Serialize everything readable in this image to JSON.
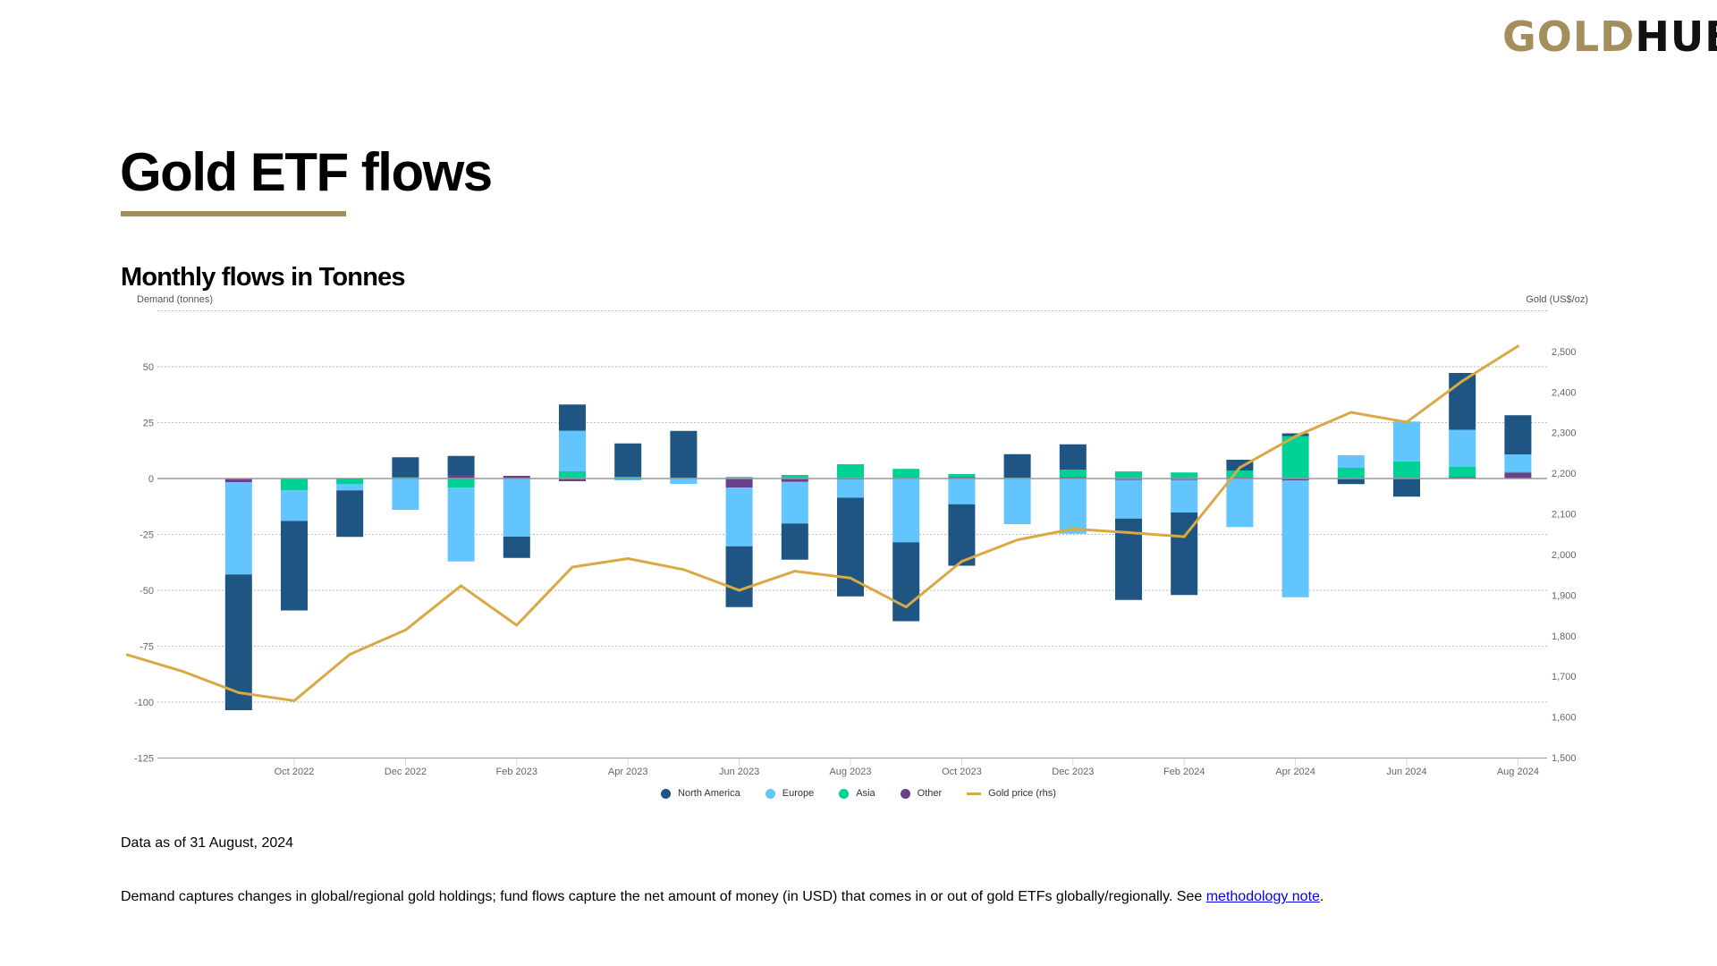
{
  "logo": {
    "gold": "GOLD",
    "hub": "HUB"
  },
  "page_title": "Gold ETF flows",
  "footer": {
    "as_of": "Data as of 31 August, 2024",
    "note_text": "Demand captures changes in global/regional gold holdings; fund flows capture the net amount of money (in USD) that comes in or out of gold ETFs globally/regionally. See ",
    "note_link": "methodology note",
    "note_end": "."
  },
  "chart_data": {
    "type": "bar",
    "stacked": true,
    "title": "Monthly flows in Tonnes",
    "ylabel": "Demand (tonnes)",
    "ylabel_right": "Gold (US$/oz)",
    "ylim": [
      -125,
      75
    ],
    "yticks": [
      -125,
      -100,
      -75,
      -50,
      -25,
      0,
      25,
      50
    ],
    "ylim_right": [
      1500,
      2600
    ],
    "yticks_right": [
      "1,500",
      "1,600",
      "1,700",
      "1,800",
      "1,900",
      "2,000",
      "2,100",
      "2,200",
      "2,300",
      "2,400",
      "2,500"
    ],
    "grid": true,
    "legend_position": "bottom-center",
    "categories": [
      "Sep 2022",
      "Oct 2022",
      "Nov 2022",
      "Dec 2022",
      "Jan 2023",
      "Feb 2023",
      "Mar 2023",
      "Apr 2023",
      "May 2023",
      "Jun 2023",
      "Jul 2023",
      "Aug 2023",
      "Sep 2023",
      "Oct 2023",
      "Nov 2023",
      "Dec 2023",
      "Jan 2024",
      "Feb 2024",
      "Mar 2024",
      "Apr 2024",
      "May 2024",
      "Jun 2024",
      "Jul 2024",
      "Aug 2024"
    ],
    "xtick_labels": [
      "Oct 2022",
      "Dec 2022",
      "Feb 2023",
      "Apr 2023",
      "Jun 2023",
      "Aug 2023",
      "Oct 2023",
      "Dec 2023",
      "Feb 2024",
      "Apr 2024",
      "Jun 2024",
      "Aug 2024"
    ],
    "series": [
      {
        "name": "North America",
        "color": "#1f5582",
        "values": [
          -60.7,
          -40.0,
          -20.8,
          9.0,
          8.5,
          -9.5,
          11.7,
          15.0,
          21.0,
          -27.2,
          -16.2,
          -44.1,
          -35.3,
          -27.5,
          10.5,
          11.3,
          -36.4,
          -36.9,
          4.8,
          1.3,
          -2.5,
          -8.1,
          25.4,
          17.5
        ]
      },
      {
        "name": "Europe",
        "color": "#63c5fd",
        "values": [
          -41.3,
          -13.7,
          -2.9,
          -14.0,
          -33.1,
          -26.0,
          18.2,
          -0.5,
          -2.4,
          -26.3,
          -18.6,
          -8.2,
          -28.5,
          -11.5,
          -20.4,
          -24.7,
          -17.3,
          -14.6,
          -21.7,
          -52.2,
          5.6,
          17.8,
          16.6,
          7.7
        ]
      },
      {
        "name": "Asia",
        "color": "#00d195",
        "values": [
          0,
          -5.3,
          -2.0,
          0.5,
          -4.0,
          0,
          3.2,
          0.7,
          0.3,
          0.7,
          1.6,
          6.4,
          4.3,
          1.3,
          0.4,
          3.3,
          3.2,
          2.7,
          3.2,
          18.9,
          4.8,
          7.4,
          4.5,
          0.4
        ]
      },
      {
        "name": "Other",
        "color": "#6c3f8a",
        "values": [
          -1.6,
          0,
          -0.4,
          0,
          1.6,
          1.2,
          -1.2,
          -0.3,
          0,
          -4.0,
          -1.5,
          -0.4,
          0,
          0.7,
          0,
          0.7,
          -0.6,
          -0.6,
          0.4,
          -0.9,
          0,
          0.3,
          0.7,
          2.7
        ]
      }
    ],
    "line": {
      "name": "Gold price (rhs)",
      "color": "#d9a945",
      "axis": "right",
      "months": [
        "Jul 2022",
        "Aug 2022",
        "Sep 2022",
        "Oct 2022",
        "Nov 2022",
        "Dec 2022",
        "Jan 2023",
        "Feb 2023",
        "Mar 2023",
        "Apr 2023",
        "May 2023",
        "Jun 2023",
        "Jul 2023",
        "Aug 2023",
        "Sep 2023",
        "Oct 2023",
        "Nov 2023",
        "Dec 2023",
        "Jan 2024",
        "Feb 2024",
        "Mar 2024",
        "Apr 2024",
        "May 2024",
        "Jun 2024",
        "Jul 2024",
        "Aug 2024"
      ],
      "values": [
        1753,
        1712,
        1660,
        1640,
        1754,
        1814,
        1923,
        1826,
        1969,
        1990,
        1963,
        1912,
        1959,
        1942,
        1871,
        1983,
        2036,
        2063,
        2054,
        2044,
        2214,
        2291,
        2350,
        2326,
        2427,
        2513
      ]
    }
  }
}
